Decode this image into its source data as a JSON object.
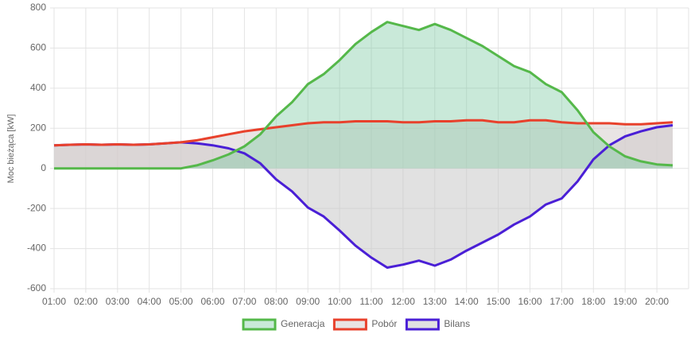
{
  "chart_data": {
    "type": "area",
    "y_label": "Moc bieżąca [kW]",
    "x": [
      1,
      1.5,
      2,
      2.5,
      3,
      3.5,
      4,
      4.5,
      5,
      5.5,
      6,
      6.5,
      7,
      7.5,
      8,
      8.5,
      9,
      9.5,
      10,
      10.5,
      11,
      11.5,
      12,
      12.5,
      13,
      13.5,
      14,
      14.5,
      15,
      15.5,
      16,
      16.5,
      17,
      17.5,
      18,
      18.5,
      19,
      19.5,
      20,
      20.5
    ],
    "series": [
      {
        "name": "Generacja",
        "color": "#55b84a",
        "fill": "rgba(120,200,160,0.4)",
        "values": [
          0,
          0,
          0,
          0,
          0,
          0,
          0,
          0,
          0,
          15,
          40,
          70,
          110,
          170,
          260,
          330,
          420,
          470,
          540,
          620,
          680,
          730,
          710,
          690,
          720,
          690,
          650,
          610,
          560,
          510,
          480,
          420,
          380,
          290,
          180,
          110,
          60,
          35,
          20,
          15
        ]
      },
      {
        "name": "Pobór",
        "color": "#e8412c",
        "fill": "rgba(215,205,205,0.55)",
        "values": [
          115,
          118,
          120,
          118,
          120,
          118,
          120,
          125,
          130,
          140,
          155,
          170,
          185,
          195,
          205,
          215,
          225,
          230,
          230,
          235,
          235,
          235,
          230,
          230,
          235,
          235,
          240,
          240,
          230,
          230,
          240,
          240,
          230,
          225,
          225,
          225,
          220,
          220,
          225,
          230
        ]
      },
      {
        "name": "Bilans",
        "color": "#4a1fd6",
        "fill": "rgba(200,200,200,0.55)",
        "values": [
          115,
          118,
          120,
          118,
          120,
          118,
          120,
          125,
          130,
          125,
          115,
          100,
          75,
          25,
          -55,
          -115,
          -195,
          -240,
          -310,
          -385,
          -445,
          -495,
          -480,
          -460,
          -485,
          -455,
          -410,
          -370,
          -330,
          -280,
          -240,
          -180,
          -150,
          -65,
          45,
          115,
          160,
          185,
          205,
          215
        ]
      }
    ],
    "xlim": [
      1,
      21
    ],
    "xticks": [
      {
        "value": 1,
        "label": "01:00"
      },
      {
        "value": 2,
        "label": "02:00"
      },
      {
        "value": 3,
        "label": "03:00"
      },
      {
        "value": 4,
        "label": "04:00"
      },
      {
        "value": 5,
        "label": "05:00"
      },
      {
        "value": 6,
        "label": "06:00"
      },
      {
        "value": 7,
        "label": "07:00"
      },
      {
        "value": 8,
        "label": "08:00"
      },
      {
        "value": 9,
        "label": "09:00"
      },
      {
        "value": 10,
        "label": "10:00"
      },
      {
        "value": 11,
        "label": "11:00"
      },
      {
        "value": 12,
        "label": "12:00"
      },
      {
        "value": 13,
        "label": "13:00"
      },
      {
        "value": 14,
        "label": "14:00"
      },
      {
        "value": 15,
        "label": "15:00"
      },
      {
        "value": 16,
        "label": "16:00"
      },
      {
        "value": 17,
        "label": "17:00"
      },
      {
        "value": 18,
        "label": "18:00"
      },
      {
        "value": 19,
        "label": "19:00"
      },
      {
        "value": 20,
        "label": "20:00"
      }
    ],
    "ylim": [
      -600,
      800
    ],
    "yticks": [
      -600,
      -400,
      -200,
      0,
      200,
      400,
      600,
      800
    ],
    "grid": true,
    "legend": "bottom"
  }
}
